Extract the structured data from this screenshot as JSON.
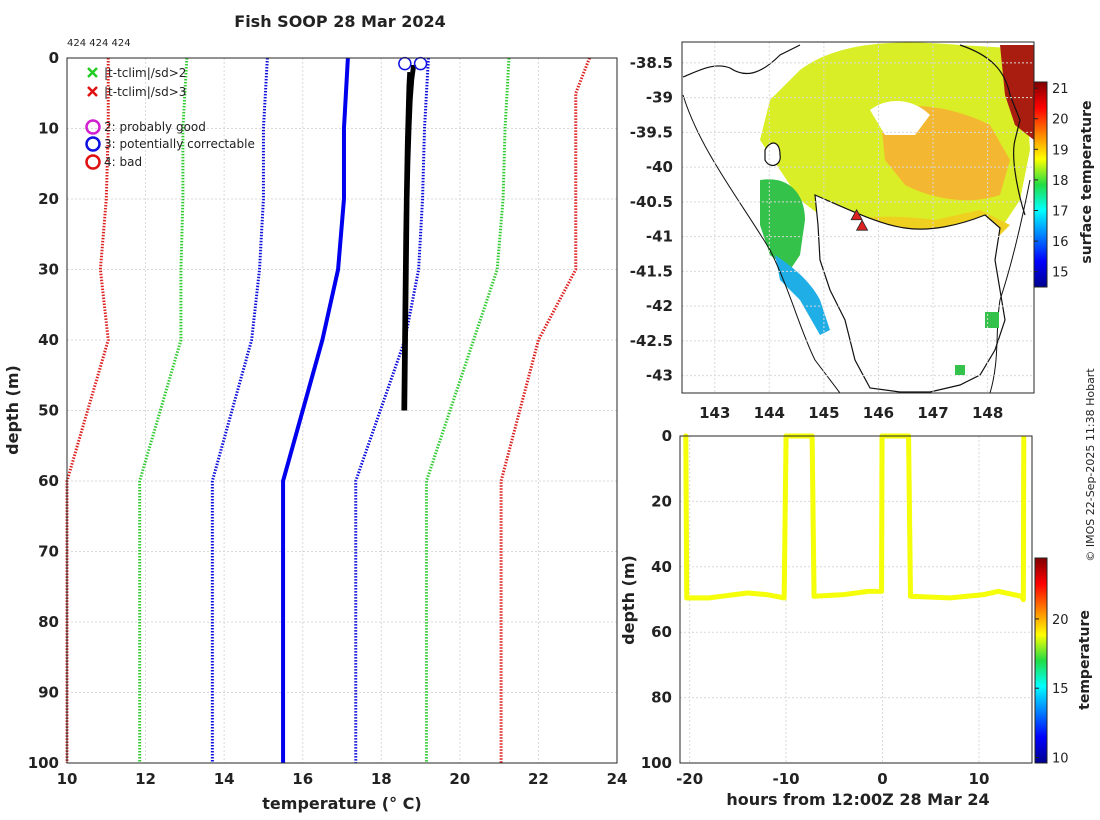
{
  "figure": {
    "title": "Fish SOOP 28 Mar 2024",
    "sample_ids": "424 424 424",
    "copyright": "© IMOS 22-Sep-2025 11:38 Hobart"
  },
  "chart_data": [
    {
      "id": "profile",
      "type": "line",
      "xlabel": "temperature (° C)",
      "ylabel": "depth (m)",
      "xlim": [
        10,
        24
      ],
      "ylim": [
        100,
        0
      ],
      "y_inverted": true,
      "xticks": [
        10,
        12,
        14,
        16,
        18,
        20,
        22,
        24
      ],
      "yticks": [
        0,
        10,
        20,
        30,
        40,
        50,
        60,
        70,
        80,
        90,
        100
      ],
      "grid": true,
      "legend_placement": "top-left",
      "legend": [
        {
          "marker": "x",
          "color": "#22cc22",
          "label": "|t-tclim|/sd>2"
        },
        {
          "marker": "x",
          "color": "#e01010",
          "label": "|t-tclim|/sd>3"
        },
        {
          "marker": "o",
          "color": "#d020d0",
          "label": "2: probably good"
        },
        {
          "marker": "o",
          "color": "#1010e0",
          "label": "3: potentially correctable"
        },
        {
          "marker": "o",
          "color": "#e01010",
          "label": "4: bad"
        }
      ],
      "depth": [
        0,
        5,
        10,
        20,
        30,
        40,
        60,
        70,
        80,
        90,
        100
      ],
      "series": [
        {
          "style": "solid",
          "color": "#0000ee",
          "width": 4,
          "x": [
            17.15,
            17.1,
            17.05,
            17.05,
            16.9,
            16.5,
            15.5,
            15.5,
            15.5,
            15.5,
            15.5
          ]
        },
        {
          "style": "dotted",
          "color": "#1010dd",
          "width": 3,
          "x": [
            15.1,
            15.05,
            15.0,
            15.0,
            14.9,
            14.7,
            13.7,
            13.7,
            13.7,
            13.7,
            13.7
          ]
        },
        {
          "style": "dotted",
          "color": "#1010dd",
          "width": 3,
          "x": [
            19.2,
            19.15,
            19.1,
            19.05,
            18.95,
            18.6,
            17.35,
            17.35,
            17.35,
            17.35,
            17.35
          ]
        },
        {
          "style": "dotted",
          "color": "#33cc33",
          "width": 3,
          "x": [
            13.05,
            13.0,
            12.95,
            12.95,
            12.9,
            12.9,
            11.85,
            11.85,
            11.85,
            11.85,
            11.85
          ]
        },
        {
          "style": "dotted",
          "color": "#33cc33",
          "width": 3,
          "x": [
            21.25,
            21.2,
            21.15,
            21.1,
            20.95,
            20.35,
            19.15,
            19.15,
            19.15,
            19.15,
            19.15
          ]
        },
        {
          "style": "dotted",
          "color": "#dd2222",
          "width": 3,
          "x": [
            11.05,
            11.05,
            11.05,
            11.0,
            10.85,
            11.05,
            10.0,
            10.0,
            10.0,
            10.0,
            10.0
          ]
        },
        {
          "style": "dotted",
          "color": "#dd2222",
          "width": 3,
          "x": [
            23.3,
            22.95,
            22.95,
            22.95,
            22.95,
            22.0,
            21.05,
            21.05,
            21.05,
            21.05,
            21.05
          ]
        }
      ],
      "observed": {
        "color": "#000000",
        "casts": [
          {
            "depth": [
              1,
              3,
              6,
              10,
              15,
              20,
              30,
              40,
              50
            ],
            "x": [
              18.8,
              18.75,
              18.72,
              18.7,
              18.68,
              18.66,
              18.64,
              18.62,
              18.6
            ]
          },
          {
            "depth": [
              1,
              3,
              6,
              10,
              15,
              20,
              30,
              40,
              50
            ],
            "x": [
              18.85,
              18.8,
              18.76,
              18.73,
              18.7,
              18.68,
              18.66,
              18.64,
              18.62
            ]
          },
          {
            "depth": [
              2,
              4,
              8,
              12,
              18,
              25,
              35,
              45,
              50
            ],
            "x": [
              18.7,
              18.68,
              18.66,
              18.64,
              18.62,
              18.6,
              18.58,
              18.56,
              18.55
            ]
          }
        ]
      },
      "flags": [
        {
          "x": 18.6,
          "y": 0.8,
          "color": "#1010e0"
        },
        {
          "x": 19.0,
          "y": 0.8,
          "color": "#1010e0"
        }
      ]
    },
    {
      "id": "map",
      "type": "heatmap",
      "x_ticks": [
        "143",
        "144",
        "145",
        "146",
        "147",
        "148"
      ],
      "x_values": [
        143,
        144,
        145,
        146,
        147,
        148
      ],
      "y_ticks": [
        "-38.5",
        "-39",
        "-39.5",
        "-40",
        "-40.5",
        "-41",
        "-41.5",
        "-42",
        "-42.5",
        "-43"
      ],
      "y_values": [
        -38.5,
        -39,
        -39.5,
        -40,
        -40.5,
        -41,
        -41.5,
        -42,
        -42.5,
        -43
      ],
      "xlim": [
        142.4,
        148.85
      ],
      "ylim": [
        -43.25,
        -38.2
      ],
      "colorbar": {
        "label": "surface temperature",
        "range": [
          14.5,
          21.2
        ],
        "ticks": [
          15,
          16,
          17,
          18,
          19,
          20,
          21
        ]
      },
      "markers": [
        {
          "lon": 145.6,
          "lat": -40.7,
          "color": "#dd2222"
        },
        {
          "lon": 145.7,
          "lat": -40.85,
          "color": "#dd2222"
        }
      ]
    },
    {
      "id": "time-depth",
      "type": "scatter",
      "xlabel": "hours from 12:00Z 28 Mar 24",
      "ylabel": "depth (m)",
      "xlim": [
        -21,
        15.5
      ],
      "ylim": [
        100,
        0
      ],
      "xticks": [
        -20,
        -10,
        0,
        10
      ],
      "yticks": [
        0,
        20,
        40,
        60,
        80,
        100
      ],
      "colorbar": {
        "label": "temperature",
        "range": [
          9.6,
          24.4
        ],
        "ticks": [
          10,
          15,
          20
        ]
      },
      "point_temperature": 18.7,
      "track": [
        [
          -20.4,
          0
        ],
        [
          -20.3,
          49.5
        ],
        [
          -18,
          49.5
        ],
        [
          -14,
          48
        ],
        [
          -12,
          48.5
        ],
        [
          -10.2,
          49.5
        ],
        [
          -10,
          0
        ],
        [
          -7.3,
          0
        ],
        [
          -7.1,
          49
        ],
        [
          -4,
          48.5
        ],
        [
          -1.5,
          47.5
        ],
        [
          -0.1,
          47.5
        ],
        [
          -0.05,
          0
        ],
        [
          2.7,
          0
        ],
        [
          2.9,
          49
        ],
        [
          7,
          49.5
        ],
        [
          10.5,
          48.5
        ],
        [
          12,
          47.5
        ],
        [
          14.4,
          49
        ],
        [
          14.6,
          50
        ],
        [
          14.65,
          0
        ]
      ]
    }
  ]
}
